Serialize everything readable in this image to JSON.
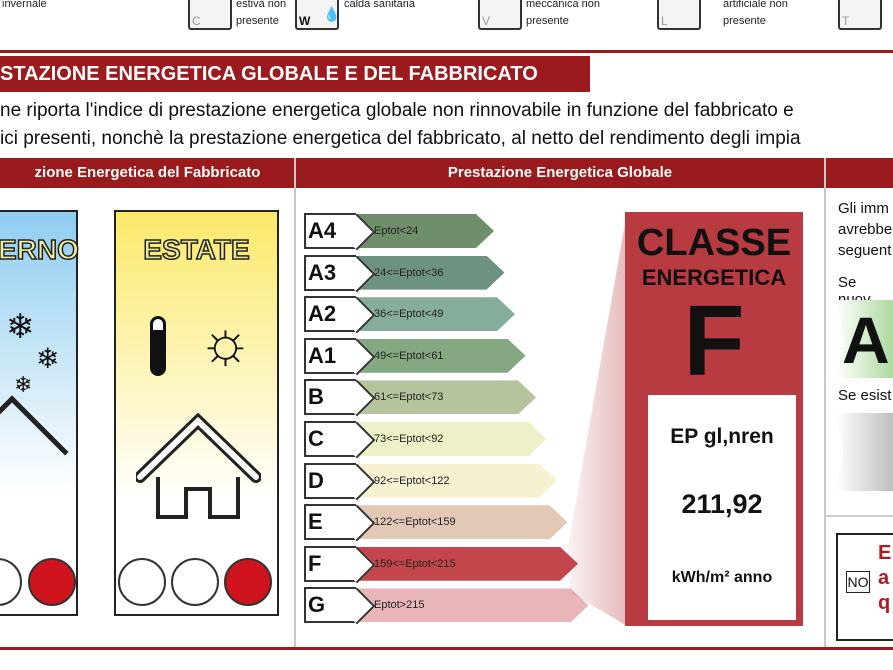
{
  "top_strip": {
    "items": [
      {
        "icon": "heating-icon",
        "letter": "",
        "text": [
          "invernale"
        ]
      },
      {
        "icon": "cooling-icon",
        "letter": "C",
        "text": [
          "estiva non",
          "presente"
        ]
      },
      {
        "icon": "hot-water-icon",
        "letter": "W",
        "text": [
          "calda sanitaria"
        ]
      },
      {
        "icon": "ventilation-icon",
        "letter": "V",
        "text": [
          "meccanica non",
          "presente"
        ]
      },
      {
        "icon": "lighting-icon",
        "letter": "L",
        "text": [
          "artificiale non",
          "presente"
        ]
      },
      {
        "icon": "transport-icon",
        "letter": "T",
        "text": []
      }
    ]
  },
  "section_title": "STAZIONE ENERGETICA GLOBALE E DEL FABBRICATO",
  "paragraph": [
    "ne riporta l'indice di prestazione energetica globale non rinnovabile in funzione del fabbricato e",
    "ici presenti, nonchè la prestazione energetica del fabbricato, al netto del rendimento degli impia"
  ],
  "columns": {
    "fabbricato": "zione Energetica del Fabbricato",
    "globale": "Prestazione Energetica Globale"
  },
  "winter": {
    "label": "ERNO",
    "rating": "poor"
  },
  "summer": {
    "label": "ESTATE",
    "rating": "poor"
  },
  "scale": [
    {
      "cls": "A4",
      "range": "Eptot<24",
      "color": "#6f8f6a"
    },
    {
      "cls": "A3",
      "range": "24<=Eptot<36",
      "color": "#6e9282"
    },
    {
      "cls": "A2",
      "range": "36<=Eptot<49",
      "color": "#86ad9a"
    },
    {
      "cls": "A1",
      "range": "49<=Eptot<61",
      "color": "#84a982"
    },
    {
      "cls": "B",
      "range": "61<=Eptot<73",
      "color": "#b5c49c"
    },
    {
      "cls": "C",
      "range": "73<=Eptot<92",
      "color": "#eef0c8"
    },
    {
      "cls": "D",
      "range": "92<=Eptot<122",
      "color": "#f6f1d1"
    },
    {
      "cls": "E",
      "range": "122<=Eptot<159",
      "color": "#e4c8b6"
    },
    {
      "cls": "F",
      "range": "159<=Eptot<215",
      "color": "#c2464c"
    },
    {
      "cls": "G",
      "range": "Eptot>215",
      "color": "#e8b6b9"
    }
  ],
  "result": {
    "title1": "CLASSE",
    "title2": "ENERGETICA",
    "class": "F",
    "index_label": "EP gl,nren",
    "value": "211,92",
    "unit": "kWh/m² anno",
    "color": "#b73b40"
  },
  "right": {
    "lines": [
      "Gli imm",
      "avrebbe",
      "seguent"
    ],
    "new_label": "Se nuov",
    "new_class": "A",
    "existing_label": "Se esist",
    "no_label": "NO",
    "red_text": [
      "E",
      "a",
      "q"
    ]
  }
}
